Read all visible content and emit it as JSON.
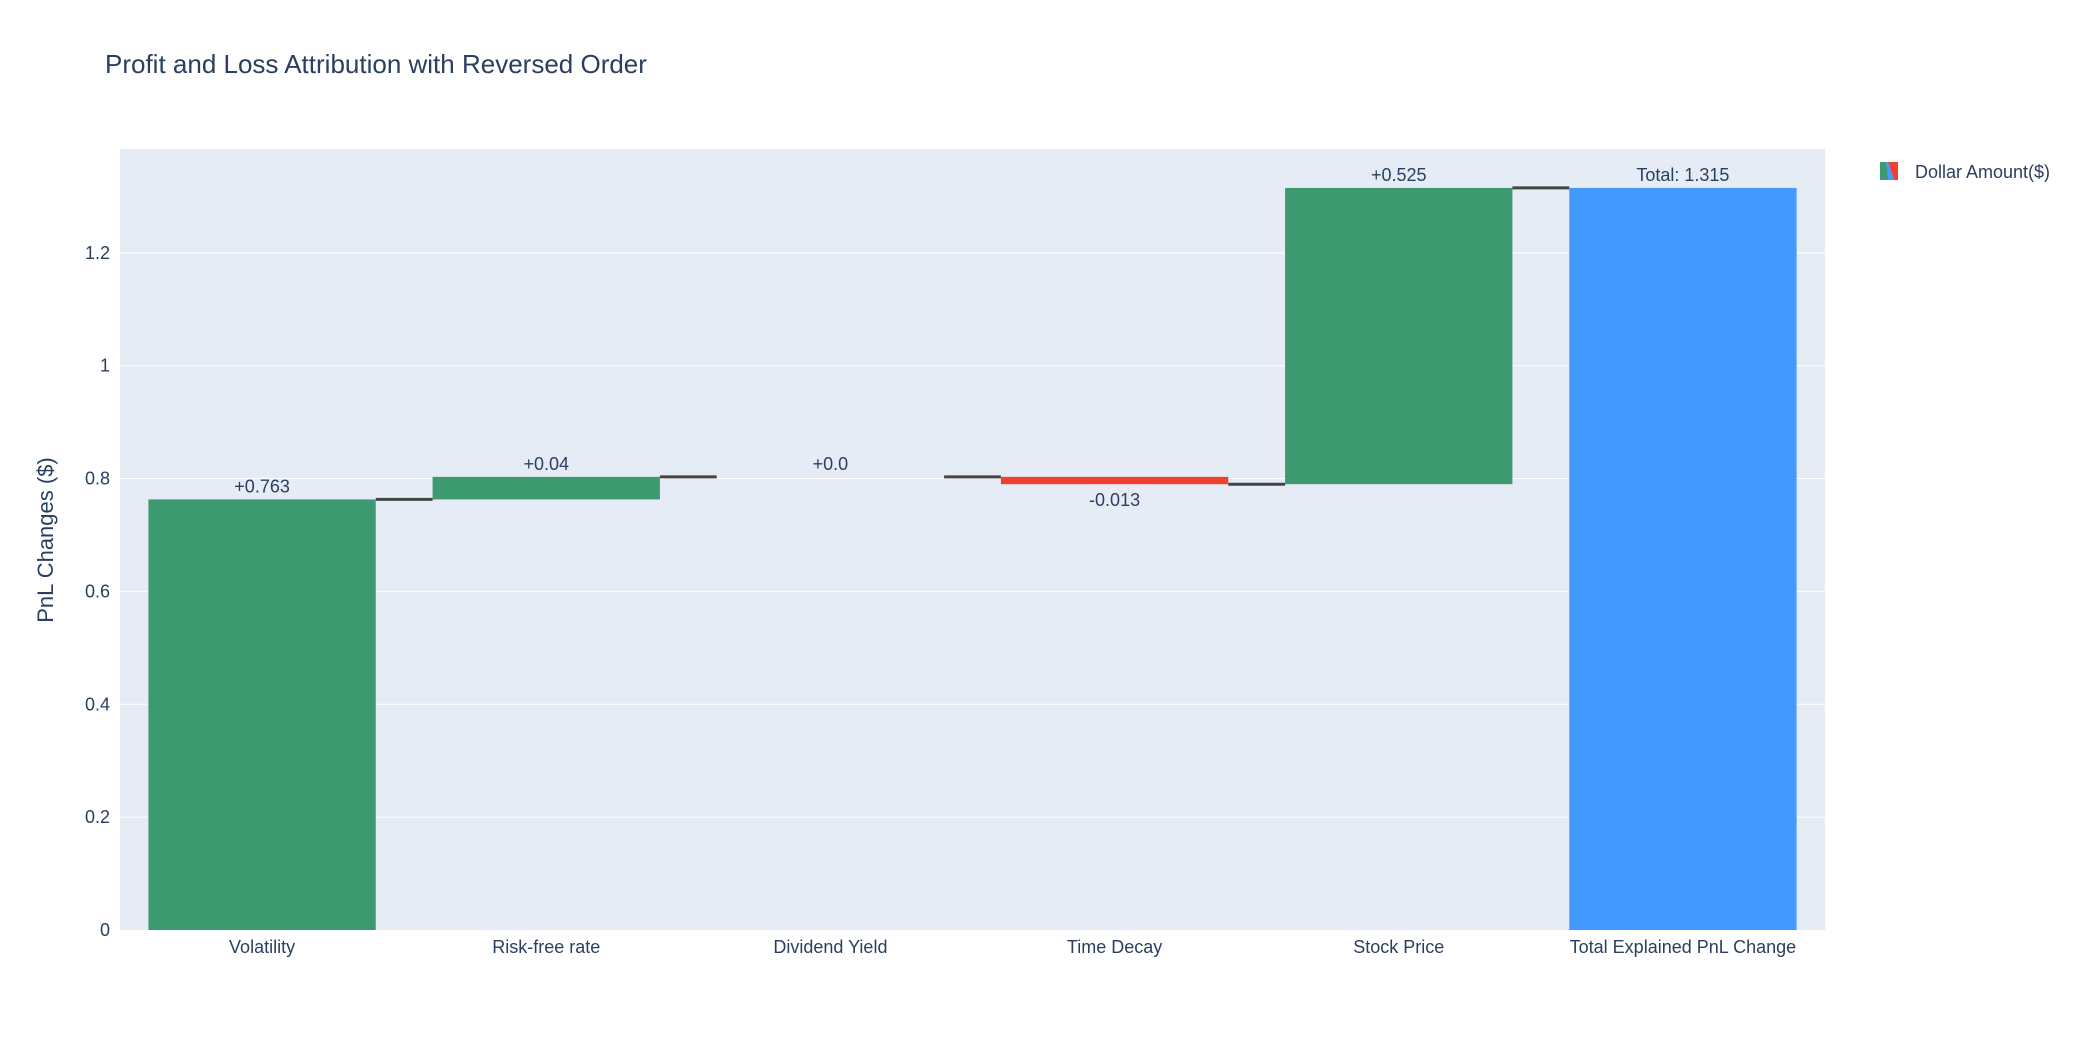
{
  "chart_data": {
    "type": "waterfall",
    "title": "Profit and Loss Attribution with Reversed Order",
    "xlabel": "",
    "ylabel": "PnL Changes ($)",
    "ylim": [
      0,
      1.384
    ],
    "yticks": [
      0,
      0.2,
      0.4,
      0.6,
      0.8,
      1,
      1.2
    ],
    "ytick_labels": [
      "0",
      "0.2",
      "0.4",
      "0.6",
      "0.8",
      "1",
      "1.2"
    ],
    "categories": [
      "Volatility",
      "Risk-free rate",
      "Dividend Yield",
      "Time Decay",
      "Stock Price",
      "Total Explained PnL Change"
    ],
    "measures": [
      "relative",
      "relative",
      "relative",
      "relative",
      "relative",
      "total"
    ],
    "values": [
      0.763,
      0.04,
      0.0,
      -0.013,
      0.525,
      1.315
    ],
    "text_labels": [
      "+0.763",
      "+0.04",
      "+0.0",
      "-0.013",
      "+0.525",
      "Total: 1.315"
    ],
    "grid": true,
    "legend": {
      "entries": [
        "Dollar Amount($)"
      ],
      "position": "top-right"
    },
    "colors": {
      "increasing": "#3d9970",
      "decreasing": "#f0402f",
      "total": "#4499ff",
      "connector": "#444444",
      "plot_bg": "#e5ecf6",
      "grid": "#ffffff",
      "text": "#2a3f5f"
    }
  }
}
